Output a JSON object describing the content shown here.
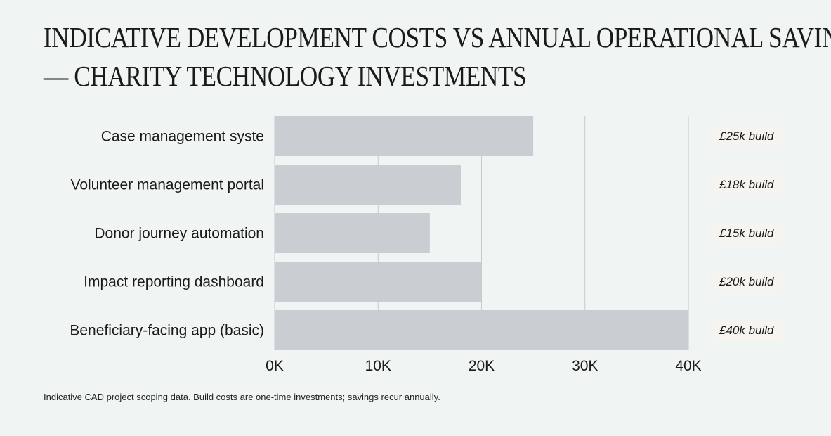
{
  "header": {
    "title_line1": "INDICATIVE DEVELOPMENT COSTS VS ANNUAL OPERATIONAL SAVINGS",
    "title_line2": "— CHARITY TECHNOLOGY INVESTMENTS"
  },
  "footer": {
    "note": "Indicative CAD project scoping data. Build costs are one-time investments; savings recur annually."
  },
  "chart_data": {
    "type": "bar",
    "orientation": "horizontal",
    "title": "INDICATIVE DEVELOPMENT COSTS VS ANNUAL OPERATIONAL SAVINGS — CHARITY TECHNOLOGY INVESTMENTS",
    "categories": [
      "Case management syste",
      "Volunteer management portal",
      "Donor journey automation",
      "Impact reporting dashboard",
      "Beneficiary-facing app (basic)"
    ],
    "values": [
      25000,
      18000,
      15000,
      20000,
      40000
    ],
    "data_labels": [
      "£25k build",
      "£18k build",
      "£15k build",
      "£20k build",
      "£40k build"
    ],
    "xlim": [
      0,
      40000
    ],
    "xticks": [
      0,
      10000,
      20000,
      30000,
      40000
    ],
    "xtick_labels": [
      "0K",
      "10K",
      "20K",
      "30K",
      "40K"
    ],
    "grid": true,
    "legend": "none",
    "colors": {
      "bar": "#c9ced3",
      "grid": "#c4c9cc",
      "label_bg": "#f7f3ee",
      "text": "#1a1a1a"
    }
  }
}
